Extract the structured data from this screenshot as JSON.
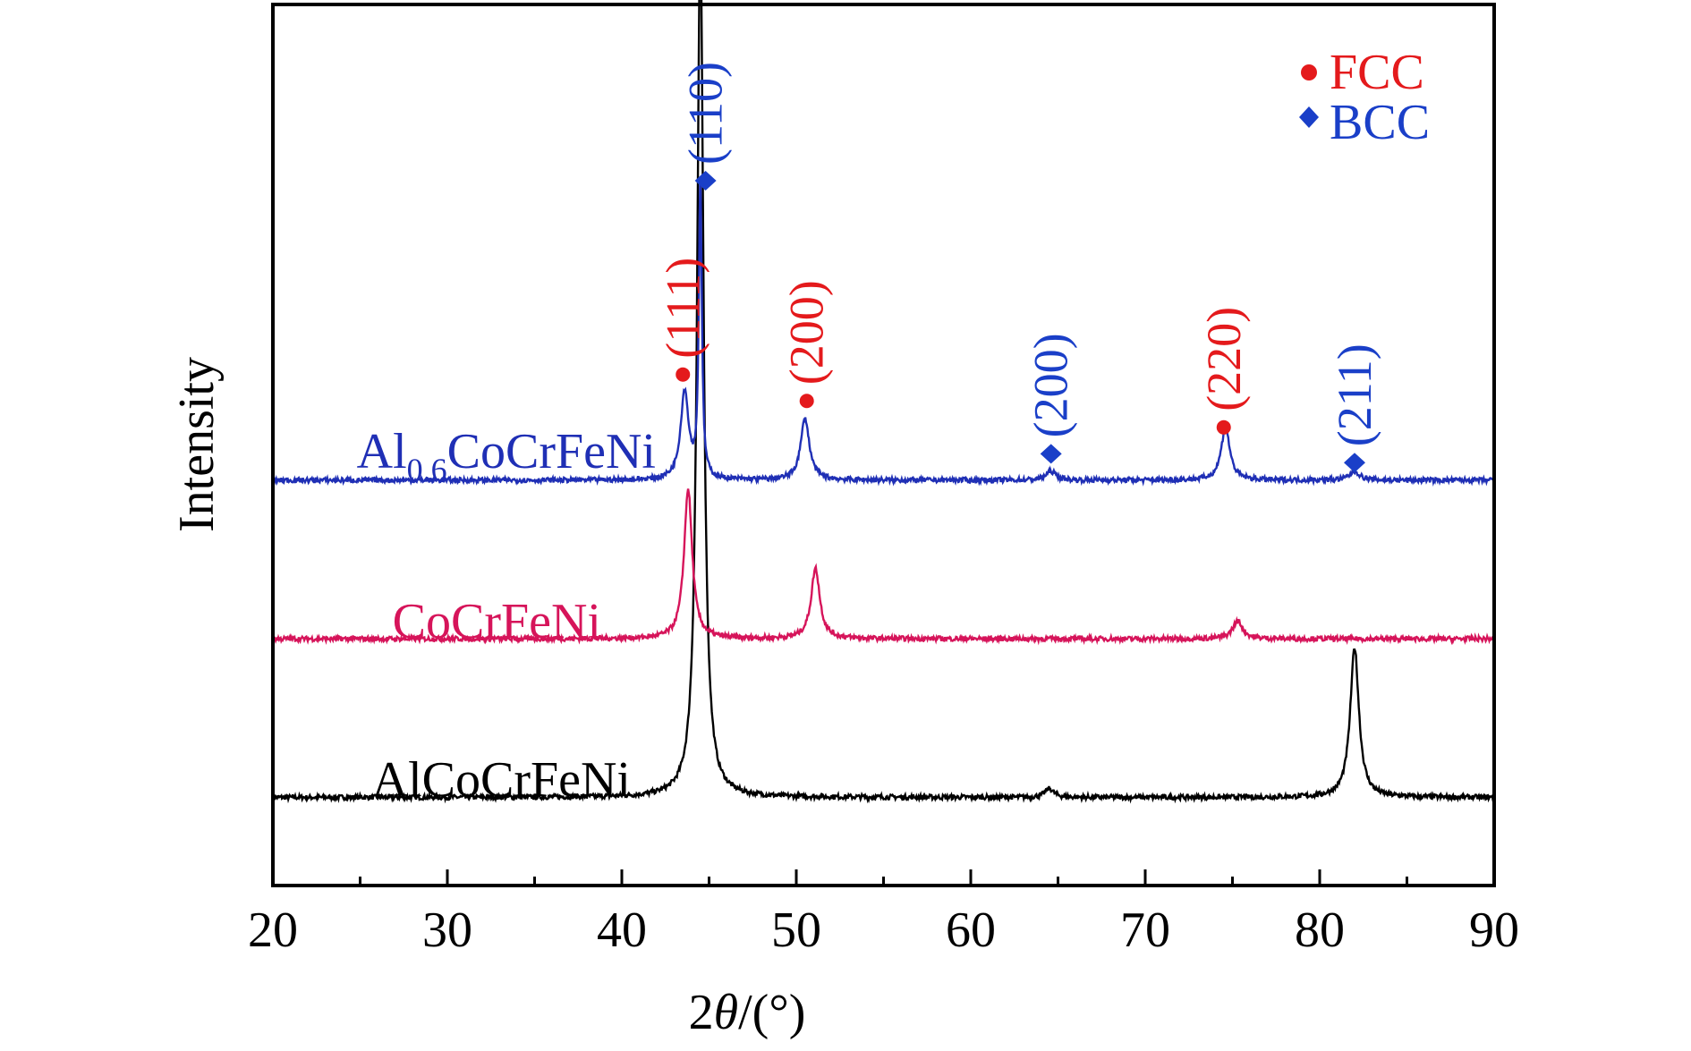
{
  "chart_data": {
    "type": "line",
    "title": "",
    "xlabel_prefix": "2",
    "xlabel_theta": "θ",
    "xlabel_suffix": "/(°)",
    "ylabel": "Intensity",
    "xlim": [
      20,
      90
    ],
    "xticks": [
      20,
      30,
      40,
      50,
      60,
      70,
      80,
      90
    ],
    "grid": false,
    "legend_position": "top-right",
    "legend": [
      {
        "name": "FCC",
        "marker": "circle",
        "color": "#e41a1c"
      },
      {
        "name": "BCC",
        "marker": "diamond",
        "color": "#1a3fc8"
      }
    ],
    "series": [
      {
        "name": "AlCoCrFeNi",
        "color": "#000000",
        "baseline_percent": 10,
        "peaks": [
          {
            "x": 44.5,
            "height_percent": 98,
            "width": 0.22
          },
          {
            "x": 64.5,
            "height_percent": 1,
            "width": 0.3
          },
          {
            "x": 82.0,
            "height_percent": 17,
            "width": 0.3
          }
        ]
      },
      {
        "name": "CoCrFeNi",
        "color": "#d6145a",
        "baseline_percent": 28,
        "peaks": [
          {
            "x": 43.8,
            "height_percent": 17,
            "width": 0.28
          },
          {
            "x": 51.1,
            "height_percent": 8,
            "width": 0.3
          },
          {
            "x": 75.3,
            "height_percent": 2,
            "width": 0.35
          }
        ]
      },
      {
        "name_main": "Al",
        "name_sub": "0.6",
        "name_rest": "CoCrFeNi",
        "color": "#1f2fb5",
        "baseline_percent": 46,
        "peaks": [
          {
            "x": 43.6,
            "height_percent": 10,
            "width": 0.28
          },
          {
            "x": 44.5,
            "height_percent": 34,
            "width": 0.1
          },
          {
            "x": 50.5,
            "height_percent": 7,
            "width": 0.3
          },
          {
            "x": 64.6,
            "height_percent": 1,
            "width": 0.35
          },
          {
            "x": 74.6,
            "height_percent": 6,
            "width": 0.3
          },
          {
            "x": 82.0,
            "height_percent": 1,
            "width": 0.35
          }
        ]
      }
    ],
    "annotations": [
      {
        "x": 43.5,
        "marker": "circle",
        "phase": "FCC",
        "label": "(111)",
        "marker_y_percent": 58
      },
      {
        "x": 44.8,
        "marker": "diamond",
        "phase": "BCC",
        "label": "(110)",
        "marker_y_percent": 80
      },
      {
        "x": 50.6,
        "marker": "circle",
        "phase": "FCC",
        "label": "(200)",
        "marker_y_percent": 55
      },
      {
        "x": 64.6,
        "marker": "diamond",
        "phase": "BCC",
        "label": "(200)",
        "marker_y_percent": 49
      },
      {
        "x": 74.5,
        "marker": "circle",
        "phase": "FCC",
        "label": "(220)",
        "marker_y_percent": 52
      },
      {
        "x": 82.0,
        "marker": "diamond",
        "phase": "BCC",
        "label": "(211)",
        "marker_y_percent": 48
      }
    ]
  }
}
